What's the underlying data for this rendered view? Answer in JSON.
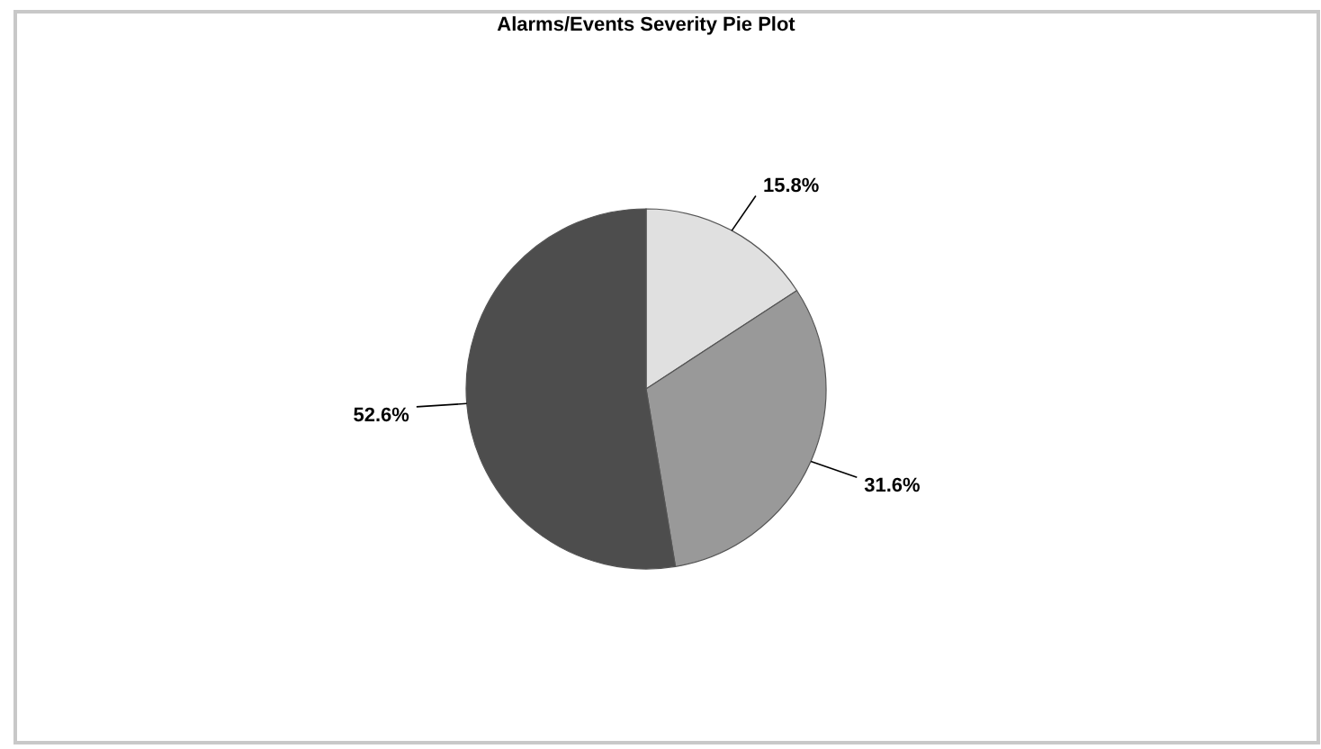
{
  "chart_data": {
    "type": "pie",
    "title": "Alarms/Events Severity Pie Plot",
    "categories": [
      null,
      null,
      null
    ],
    "values": [
      15.8,
      31.6,
      52.6
    ],
    "colors": [
      "#e0e0e0",
      "#999999",
      "#4d4d4d"
    ],
    "value_labels": [
      "15.8%",
      "31.6%",
      "52.6%"
    ]
  }
}
